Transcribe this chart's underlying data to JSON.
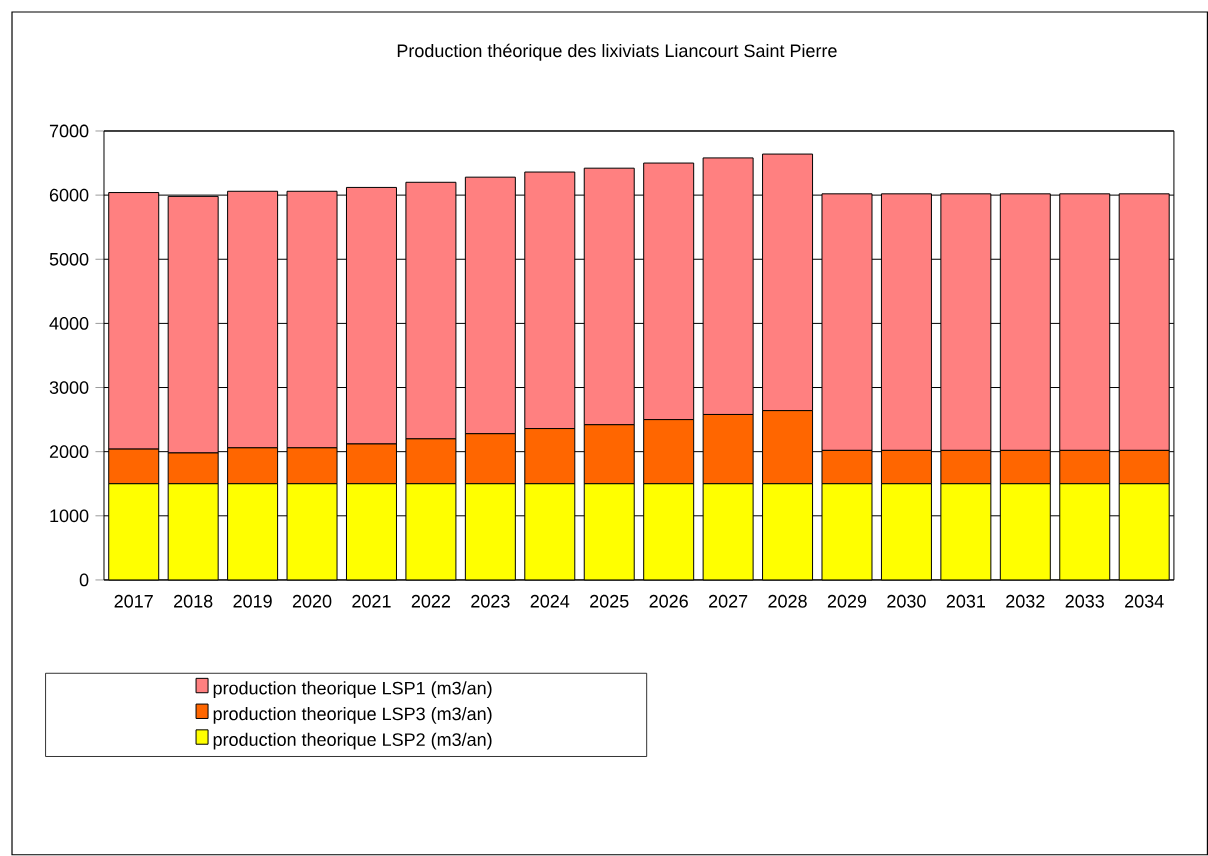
{
  "chart_data": {
    "type": "bar",
    "title": "Production théorique des lixiviats Liancourt Saint Pierre",
    "categories": [
      "2017",
      "2018",
      "2019",
      "2020",
      "2021",
      "2022",
      "2023",
      "2024",
      "2025",
      "2026",
      "2027",
      "2028",
      "2029",
      "2030",
      "2031",
      "2032",
      "2033",
      "2034"
    ],
    "stacked": true,
    "series": [
      {
        "name": "production theorique LSP2 (m3/an)",
        "color": "#ffff00",
        "values": [
          1500,
          1500,
          1500,
          1500,
          1500,
          1500,
          1500,
          1500,
          1500,
          1500,
          1500,
          1500,
          1500,
          1500,
          1500,
          1500,
          1500,
          1500
        ]
      },
      {
        "name": "production theorique LSP3 (m3/an)",
        "color": "#ff6600",
        "values": [
          540,
          480,
          560,
          560,
          620,
          700,
          780,
          860,
          920,
          1000,
          1080,
          1140,
          520,
          520,
          520,
          520,
          520,
          520
        ]
      },
      {
        "name": "production theorique LSP1 (m3/an)",
        "color": "#ff8080",
        "values": [
          4000,
          4000,
          4000,
          4000,
          4000,
          4000,
          4000,
          4000,
          4000,
          4000,
          4000,
          4000,
          4000,
          4000,
          4000,
          4000,
          4000,
          4000
        ]
      }
    ],
    "ylim": [
      0,
      7000
    ],
    "yticks": [
      0,
      1000,
      2000,
      3000,
      4000,
      5000,
      6000,
      7000
    ],
    "grid": "y",
    "legend": "bottom left"
  }
}
